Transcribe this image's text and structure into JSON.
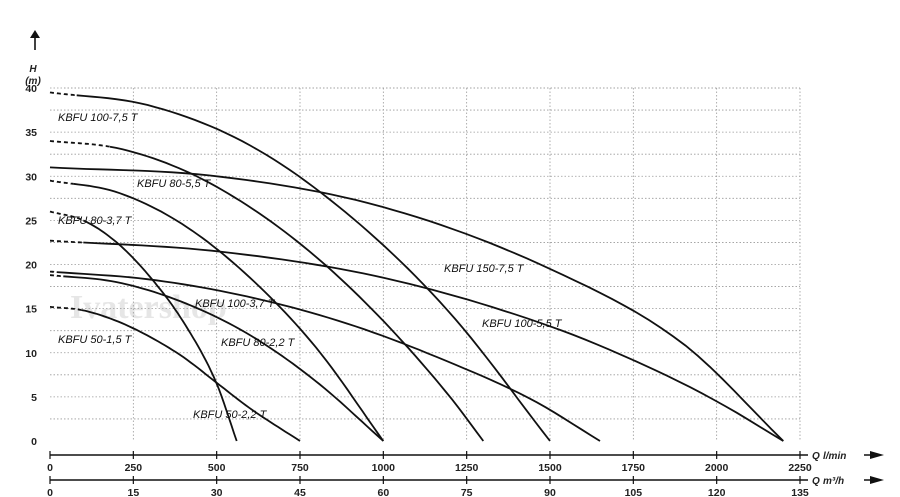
{
  "watermark": "Ivatershop",
  "chart_data": {
    "type": "line",
    "title": "",
    "ylabel": "H",
    "ylabel_unit": "(m)",
    "xlabel": "Q",
    "xlabel_unit": "l/min",
    "x2label": "Q",
    "x2label_unit": "m³/h",
    "xlim": [
      0,
      2250
    ],
    "ylim": [
      0,
      40
    ],
    "x_ticks": [
      0,
      250,
      500,
      750,
      1000,
      1250,
      1500,
      1750,
      2000,
      2250
    ],
    "x2_ticks": [
      0,
      15,
      30,
      45,
      60,
      75,
      90,
      105,
      120,
      135
    ],
    "y_ticks": [
      0,
      5,
      10,
      15,
      20,
      25,
      30,
      35,
      40
    ],
    "grid": true,
    "legend": "none",
    "series": [
      {
        "name": "KBFU 50-1,5 T",
        "x": [
          0,
          100,
          200,
          300,
          400,
          500,
          600,
          750
        ],
        "y": [
          15.2,
          14.8,
          13.6,
          11.8,
          9.5,
          6.6,
          3.7,
          0
        ]
      },
      {
        "name": "KBFU 50-2,2 T",
        "x": [
          0,
          100,
          200,
          300,
          400,
          500,
          560
        ],
        "y": [
          26,
          25,
          22.5,
          18.6,
          13.5,
          6.5,
          0
        ]
      },
      {
        "name": "KBFU 80-2,2 T",
        "x": [
          0,
          200,
          400,
          600,
          800,
          1000
        ],
        "y": [
          18.8,
          18.0,
          15.7,
          12.0,
          6.7,
          0
        ]
      },
      {
        "name": "KBFU 80-3,7 T",
        "x": [
          0,
          200,
          400,
          600,
          800,
          1000
        ],
        "y": [
          29.5,
          28.2,
          24.5,
          18.5,
          10.5,
          0
        ]
      },
      {
        "name": "KBFU 80-5,5 T",
        "x": [
          0,
          200,
          400,
          600,
          800,
          1000,
          1200,
          1300
        ],
        "y": [
          34,
          33.2,
          30.7,
          26.5,
          20.8,
          13.6,
          5.0,
          0
        ]
      },
      {
        "name": "KBFU 100-3,7 T",
        "x": [
          0,
          300,
          600,
          900,
          1200,
          1450,
          1650
        ],
        "y": [
          19.2,
          18.3,
          16.3,
          13.2,
          8.9,
          4.6,
          0
        ]
      },
      {
        "name": "KBFU 100-5,5 T",
        "x": [
          0,
          500,
          1000,
          1500,
          1800,
          2000,
          2200
        ],
        "y": [
          22.7,
          21.5,
          18.5,
          13.0,
          8.3,
          4.5,
          0
        ]
      },
      {
        "name": "KBFU 100-7,5 T",
        "x": [
          0,
          300,
          600,
          900,
          1200,
          1500
        ],
        "y": [
          39.5,
          38.0,
          33.5,
          25.5,
          14.5,
          0
        ]
      },
      {
        "name": "KBFU 150-7,5 T",
        "x": [
          0,
          500,
          1000,
          1500,
          1900,
          2200
        ],
        "y": [
          31,
          30.0,
          26.5,
          19.5,
          11.0,
          0
        ]
      }
    ]
  }
}
